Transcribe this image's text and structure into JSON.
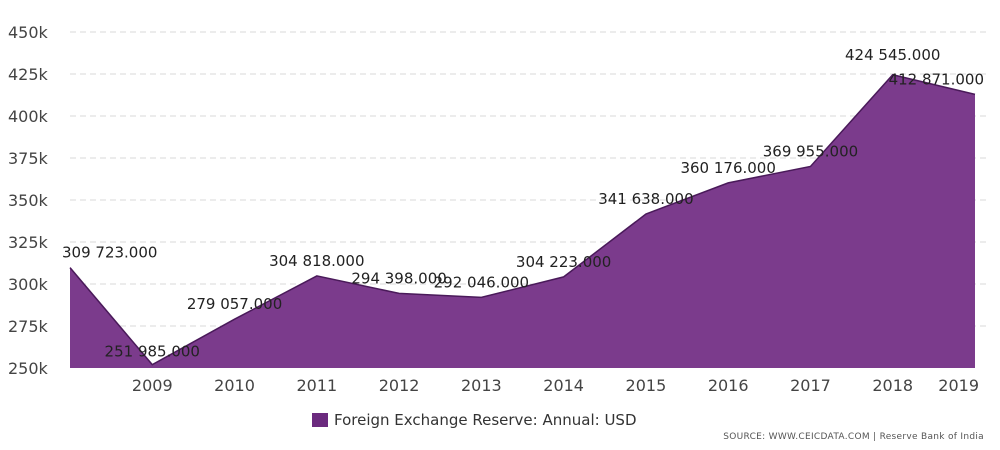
{
  "chart_data": {
    "type": "area",
    "title": "",
    "xlabel": "",
    "ylabel": "",
    "series": [
      {
        "name": "Foreign Exchange Reserve: Annual: USD",
        "color": "#7b3b8c",
        "x": [
          "2008",
          "2009",
          "2010",
          "2011",
          "2012",
          "2013",
          "2014",
          "2015",
          "2016",
          "2017",
          "2018",
          "2019"
        ],
        "values": [
          309723,
          251985,
          279057,
          304818,
          294398,
          292046,
          304223,
          341638,
          360176,
          369955,
          424545,
          412871
        ],
        "labels": [
          "309 723.000",
          "251 985.000",
          "279 057.000",
          "304 818.000",
          "294 398.000",
          "292 046.000",
          "304 223.000",
          "341 638.000",
          "360 176.000",
          "369 955.000",
          "424 545.000",
          "412 871.000"
        ]
      }
    ],
    "x_tick_labels": [
      "2009",
      "2010",
      "2011",
      "2012",
      "2013",
      "2014",
      "2015",
      "2016",
      "2017",
      "2018",
      "2019"
    ],
    "y_ticks": [
      250000,
      275000,
      300000,
      325000,
      350000,
      375000,
      400000,
      425000,
      450000
    ],
    "y_tick_labels": [
      "250k",
      "275k",
      "300k",
      "325k",
      "350k",
      "375k",
      "400k",
      "425k",
      "450k"
    ],
    "ylim": [
      250000,
      450000
    ],
    "grid": true,
    "legend_position": "bottom-center"
  },
  "legend": {
    "label": "Foreign Exchange Reserve: Annual: USD",
    "color": "#6b2a7e"
  },
  "source": "SOURCE: WWW.CEICDATA.COM | Reserve Bank of India"
}
